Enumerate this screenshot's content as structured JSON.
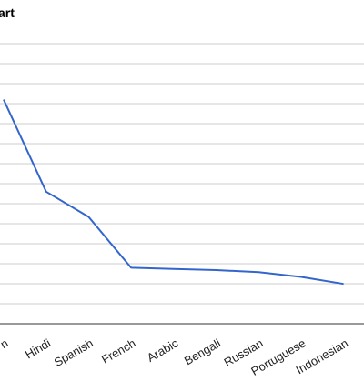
{
  "chart_data": {
    "type": "line",
    "title": "art",
    "categories": [
      "n",
      "Hindi",
      "Spanish",
      "French",
      "Arabic",
      "Bengali",
      "Russian",
      "Portuguese",
      "Indonesian"
    ],
    "series": [
      {
        "values": [
          1120,
          660,
          534,
          280,
          274,
          268,
          258,
          234,
          199
        ]
      }
    ],
    "ylim": [
      0,
      1400
    ],
    "grid": true,
    "line_color": "#3366cc",
    "grid_color": "#cccccc",
    "axis_color": "#333333"
  }
}
